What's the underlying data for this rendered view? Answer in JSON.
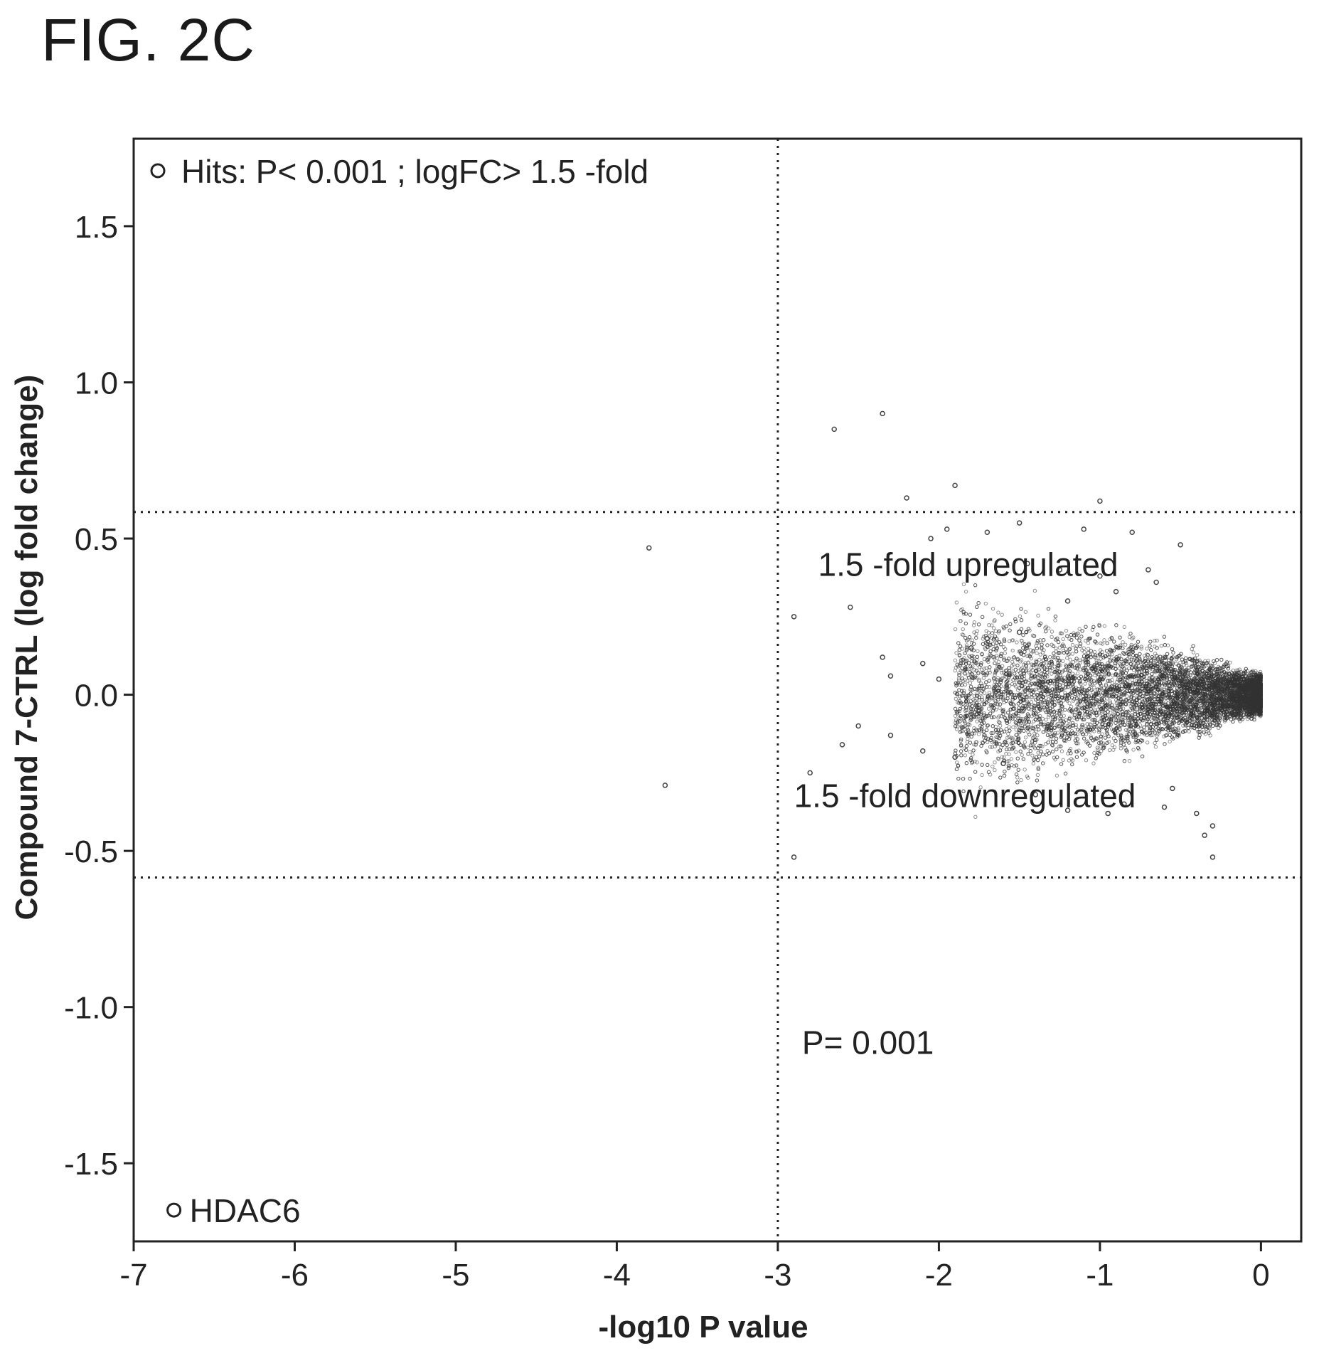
{
  "figure_label": "FIG. 2C",
  "chart_data": {
    "type": "scatter",
    "title": "",
    "xlabel": "-log10 P value",
    "ylabel": "Compound 7-CTRL (log fold change)",
    "xlim": [
      -7,
      0.25
    ],
    "ylim": [
      -1.75,
      1.78
    ],
    "x_ticks": [
      -7,
      -6,
      -5,
      -4,
      -3,
      -2,
      -1,
      0
    ],
    "y_ticks": [
      -1.5,
      -1.0,
      -0.5,
      0.0,
      0.5,
      1.0,
      1.5
    ],
    "x_tick_labels": [
      "-7",
      "-6",
      "-5",
      "-4",
      "-3",
      "-2",
      "-1",
      "0"
    ],
    "y_tick_labels": [
      "-1.5",
      "-1.0",
      "-0.5",
      "0.0",
      "0.5",
      "1.0",
      "1.5"
    ],
    "grid": false,
    "legend": {
      "placement": "top-left",
      "label": "Hits: P< 0.001 ; logFC> 1.5 -fold",
      "marker": "open-circle"
    },
    "threshold_lines": {
      "vertical_x": -3,
      "horizontal_y": [
        0.585,
        -0.585
      ]
    },
    "annotations": [
      {
        "text": "1.5 -fold upregulated",
        "x": -2.75,
        "y": 0.38
      },
      {
        "text": "1.5 -fold downregulated",
        "x": -2.9,
        "y": -0.36
      },
      {
        "text": "P= 0.001",
        "x": -2.85,
        "y": -1.15
      }
    ],
    "highlighted_points": [
      {
        "label": "HDAC6",
        "x": -6.75,
        "y": -1.65
      }
    ],
    "series": [
      {
        "marker": "open-circle",
        "points": [
          [
            -2.35,
            0.9
          ],
          [
            -2.65,
            0.85
          ],
          [
            -1.9,
            0.67
          ],
          [
            -2.2,
            0.63
          ],
          [
            -1.0,
            0.62
          ],
          [
            -3.8,
            0.47
          ],
          [
            -2.9,
            0.25
          ],
          [
            -2.55,
            0.28
          ],
          [
            -2.35,
            0.12
          ],
          [
            -2.5,
            -0.1
          ],
          [
            -2.6,
            -0.16
          ],
          [
            -2.8,
            -0.25
          ],
          [
            -3.7,
            -0.29
          ],
          [
            -2.9,
            -0.52
          ],
          [
            -0.3,
            -0.52
          ],
          [
            -0.35,
            -0.45
          ],
          [
            -0.3,
            -0.42
          ],
          [
            -0.5,
            0.48
          ],
          [
            -0.8,
            0.52
          ],
          [
            -1.1,
            0.53
          ],
          [
            -1.5,
            0.55
          ],
          [
            -1.7,
            0.52
          ],
          [
            -1.95,
            0.53
          ],
          [
            -2.05,
            0.5
          ],
          [
            -1.45,
            0.42
          ],
          [
            -1.25,
            0.4
          ],
          [
            -1.0,
            0.38
          ],
          [
            -0.7,
            0.4
          ],
          [
            -0.65,
            0.36
          ],
          [
            -0.9,
            0.33
          ],
          [
            -1.2,
            0.3
          ],
          [
            -1.5,
            0.2
          ],
          [
            -1.7,
            0.18
          ],
          [
            -2.1,
            0.1
          ],
          [
            -2.3,
            0.06
          ],
          [
            -1.8,
            0.15
          ],
          [
            -0.95,
            -0.38
          ],
          [
            -0.85,
            -0.35
          ],
          [
            -1.2,
            -0.37
          ],
          [
            -1.4,
            -0.32
          ],
          [
            -0.6,
            -0.36
          ],
          [
            -0.55,
            -0.3
          ],
          [
            -1.6,
            -0.22
          ],
          [
            -1.9,
            -0.2
          ],
          [
            -2.1,
            -0.18
          ],
          [
            -2.3,
            -0.13
          ],
          [
            -0.4,
            -0.38
          ],
          [
            -2.0,
            0.05
          ],
          [
            -1.75,
            -0.05
          ]
        ]
      }
    ]
  }
}
